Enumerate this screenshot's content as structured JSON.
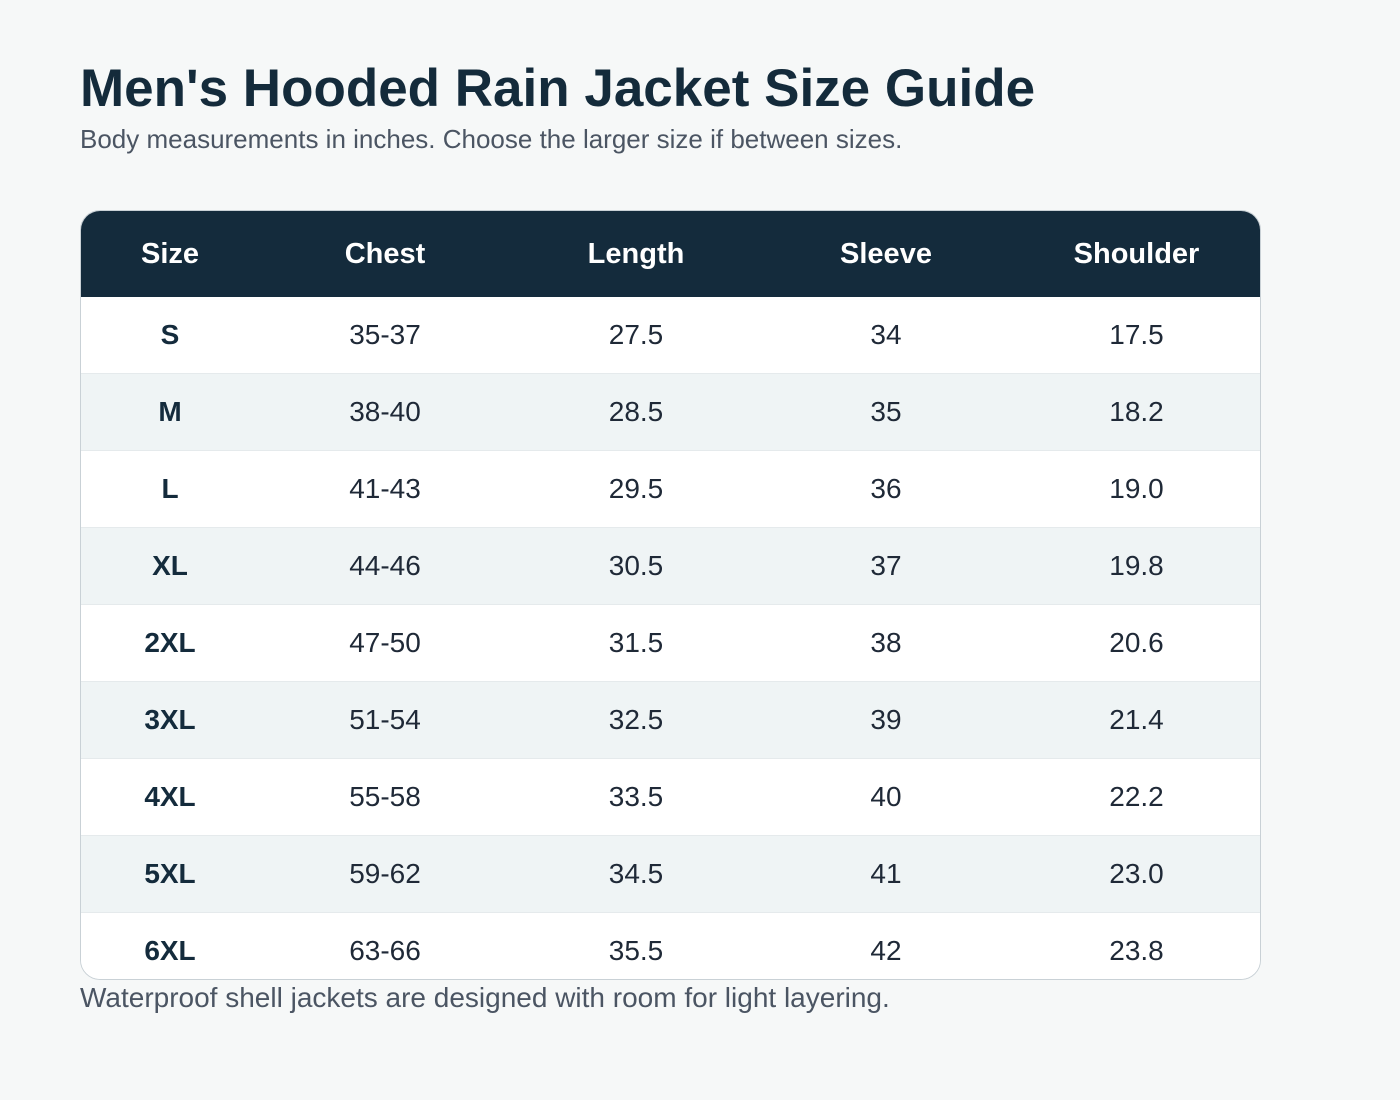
{
  "page": {
    "title": "Men's Hooded Rain Jacket Size Guide",
    "subtitle": "Body measurements in inches. Choose the larger size if between sizes.",
    "footnote": "Waterproof shell jackets are designed with room for light layering."
  },
  "table": {
    "headers": [
      "Size",
      "Chest",
      "Length",
      "Sleeve",
      "Shoulder"
    ],
    "rows": [
      [
        "S",
        "35-37",
        "27.5",
        "34",
        "17.5"
      ],
      [
        "M",
        "38-40",
        "28.5",
        "35",
        "18.2"
      ],
      [
        "L",
        "41-43",
        "29.5",
        "36",
        "19.0"
      ],
      [
        "XL",
        "44-46",
        "30.5",
        "37",
        "19.8"
      ],
      [
        "2XL",
        "47-50",
        "31.5",
        "38",
        "20.6"
      ],
      [
        "3XL",
        "51-54",
        "32.5",
        "39",
        "21.4"
      ],
      [
        "4XL",
        "55-58",
        "33.5",
        "40",
        "22.2"
      ],
      [
        "5XL",
        "59-62",
        "34.5",
        "41",
        "23.0"
      ],
      [
        "6XL",
        "63-66",
        "35.5",
        "42",
        "23.8"
      ]
    ]
  },
  "colors": {
    "header_bg": "#142b3c",
    "title": "#142b3b",
    "muted_text": "#4b5563",
    "stripe": "#eff4f5",
    "page_bg": "#f6f8f8"
  }
}
